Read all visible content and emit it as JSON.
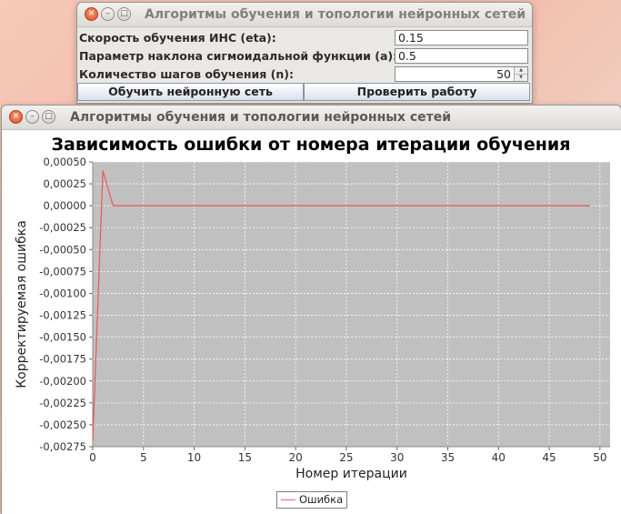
{
  "window1": {
    "title": "Алгоритмы обучения и топологии нейронных сетей",
    "fields": [
      {
        "label": "Скорость обучения ИНС (eta):",
        "value": "0.15"
      },
      {
        "label": "Параметр наклона сигмоидальной функции (a):",
        "value": "0.5"
      },
      {
        "label": "Количество шагов обучения (n):",
        "value": "50"
      }
    ],
    "train_button": "Обучить нейронную сеть",
    "check_button": "Проверить работу"
  },
  "window2": {
    "title": "Алгоритмы обучения и топологии нейронных сетей"
  },
  "colors": {
    "plot_bg": "#c0c0c0",
    "series": "#ee5555",
    "grid": "#ffffff"
  },
  "chart_data": {
    "type": "line",
    "title": "Зависимость ошибки от номера итерации обучения",
    "xlabel": "Номер итерации",
    "ylabel": "Корректируемая ошибка",
    "xlim": [
      0,
      51
    ],
    "ylim": [
      -0.00275,
      0.0005
    ],
    "xticks": [
      0,
      5,
      10,
      15,
      20,
      25,
      30,
      35,
      40,
      45,
      50
    ],
    "yticks": [
      0.0005,
      0.00025,
      0,
      -0.00025,
      -0.0005,
      -0.00075,
      -0.001,
      -0.00125,
      -0.0015,
      -0.00175,
      -0.002,
      -0.00225,
      -0.0025,
      -0.00275
    ],
    "ytick_labels": [
      "0,00050",
      "0,00025",
      "0,00000",
      "-0,00025",
      "-0,00050",
      "-0,00075",
      "-0,00100",
      "-0,00125",
      "-0,00150",
      "-0,00175",
      "-0,00200",
      "-0,00225",
      "-0,00250",
      "-0,00275"
    ],
    "grid": true,
    "legend_position": "bottom",
    "series": [
      {
        "name": "Ошибка",
        "x": [
          0,
          1,
          2,
          49
        ],
        "y": [
          -0.00268,
          0.0004,
          0.0,
          0.0
        ]
      }
    ]
  }
}
